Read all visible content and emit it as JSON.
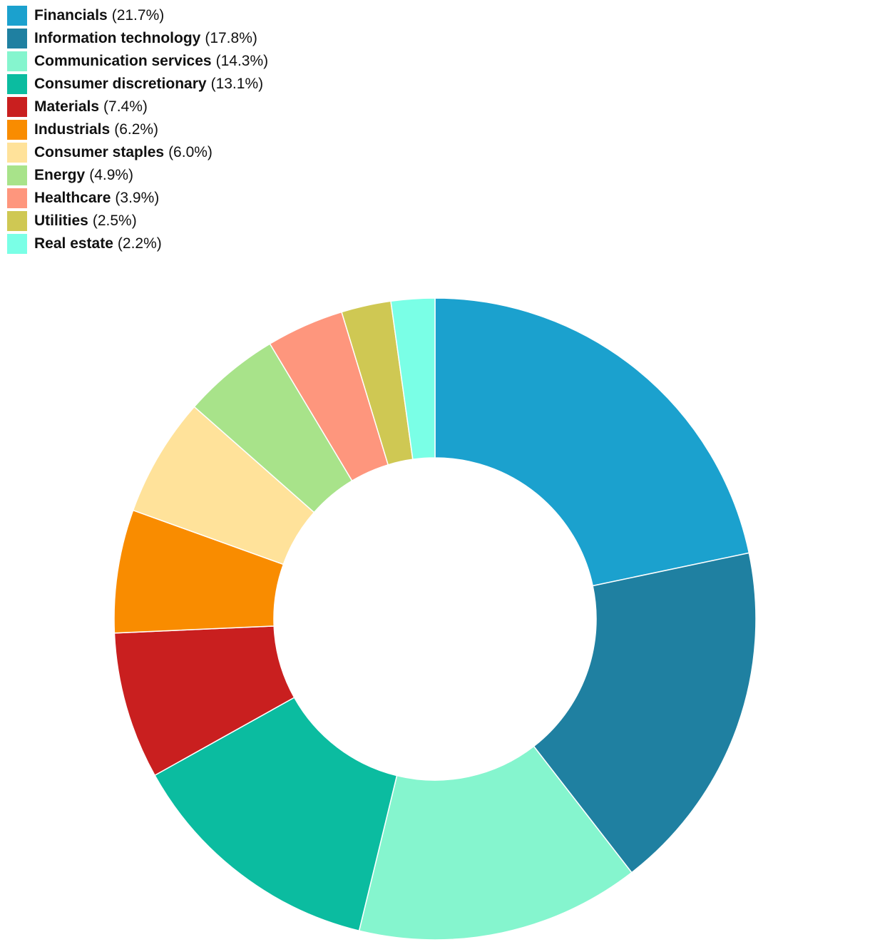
{
  "chart_data": {
    "type": "pie",
    "donut": true,
    "legend_position": "top-left",
    "slices": [
      {
        "label": "Financials",
        "value": 21.7,
        "display": "(21.7%)",
        "color": "#1ba1ce"
      },
      {
        "label": "Information technology",
        "value": 17.8,
        "display": "(17.8%)",
        "color": "#1f80a1"
      },
      {
        "label": "Communication services",
        "value": 14.3,
        "display": "(14.3%)",
        "color": "#85f5ce"
      },
      {
        "label": "Consumer discretionary",
        "value": 13.1,
        "display": "(13.1%)",
        "color": "#0bbca0"
      },
      {
        "label": "Materials",
        "value": 7.4,
        "display": "(7.4%)",
        "color": "#c91f1f"
      },
      {
        "label": "Industrials",
        "value": 6.2,
        "display": "(6.2%)",
        "color": "#f98c00"
      },
      {
        "label": "Consumer staples",
        "value": 6.0,
        "display": "(6.0%)",
        "color": "#ffe29a"
      },
      {
        "label": "Energy",
        "value": 4.9,
        "display": "(4.9%)",
        "color": "#a8e38a"
      },
      {
        "label": "Healthcare",
        "value": 3.9,
        "display": "(3.9%)",
        "color": "#fe967d"
      },
      {
        "label": "Utilities",
        "value": 2.5,
        "display": "(2.5%)",
        "color": "#cfc853"
      },
      {
        "label": "Real estate",
        "value": 2.2,
        "display": "(2.2%)",
        "color": "#7affe6"
      }
    ]
  }
}
